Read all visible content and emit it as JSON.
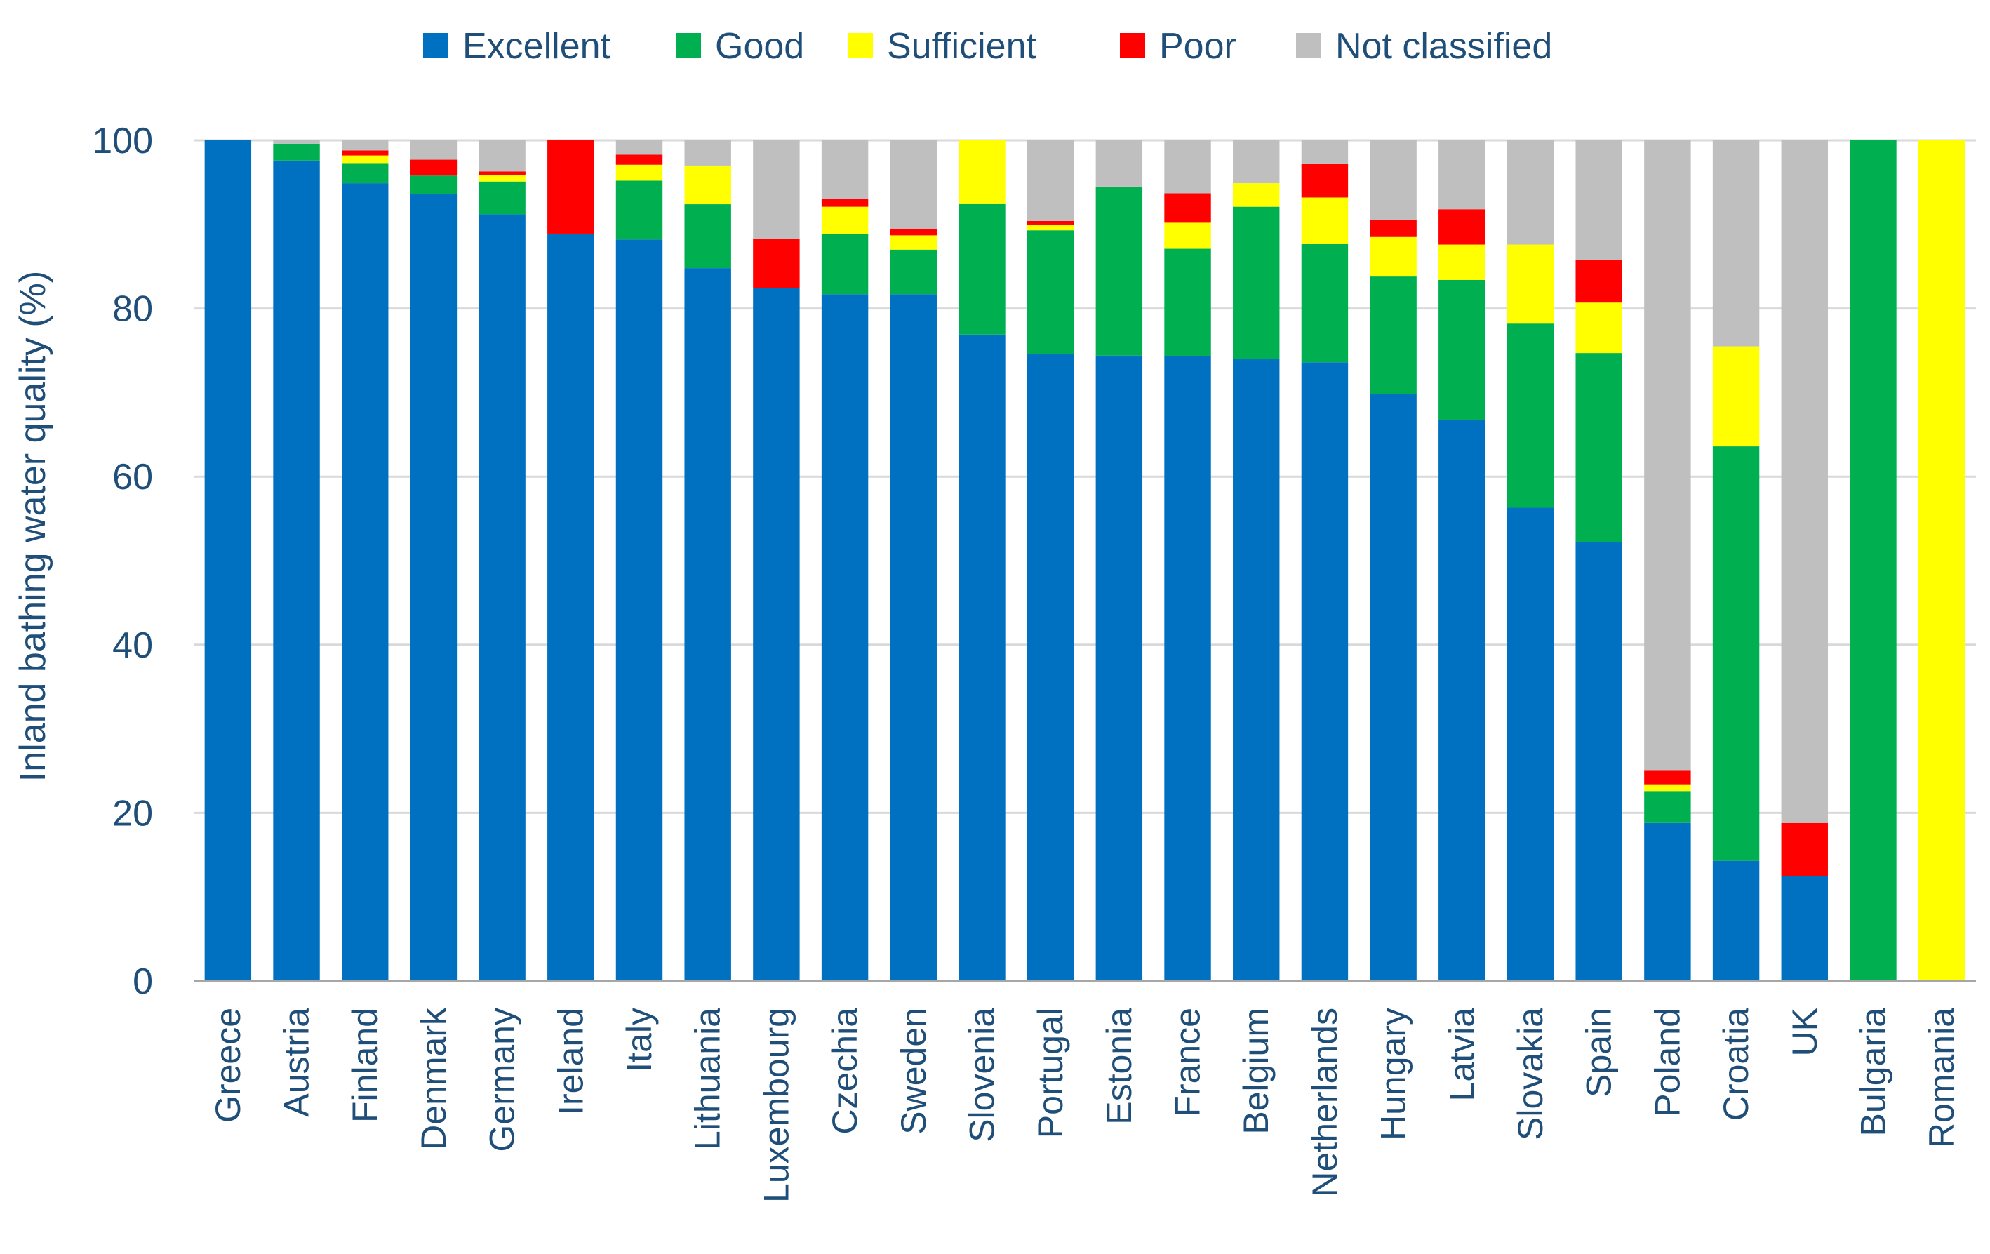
{
  "chart_data": {
    "type": "bar",
    "stacked": true,
    "title": "",
    "xlabel": "",
    "ylabel": "Inland bathing water quality (%)",
    "ylim": [
      0,
      100
    ],
    "yticks": [
      0,
      20,
      40,
      60,
      80,
      100
    ],
    "legend_position": "top",
    "categories": [
      "Greece",
      "Austria",
      "Finland",
      "Denmark",
      "Germany",
      "Ireland",
      "Italy",
      "Lithuania",
      "Luxembourg",
      "Czechia",
      "Sweden",
      "Slovenia",
      "Portugal",
      "Estonia",
      "France",
      "Belgium",
      "Netherlands",
      "Hungary",
      "Latvia",
      "Slovakia",
      "Spain",
      "Poland",
      "Croatia",
      "UK",
      "Bulgaria",
      "Romania"
    ],
    "series": [
      {
        "name": "Excellent",
        "color": "#0070c0",
        "values": [
          100,
          97.6,
          94.9,
          93.6,
          91.2,
          88.9,
          88.2,
          84.8,
          82.4,
          81.7,
          81.7,
          76.9,
          74.6,
          74.4,
          74.3,
          74.0,
          73.6,
          69.8,
          66.7,
          56.3,
          52.2,
          18.8,
          14.3,
          12.5,
          0,
          0
        ]
      },
      {
        "name": "Good",
        "color": "#00b050",
        "values": [
          0,
          2.0,
          2.4,
          2.2,
          3.9,
          0,
          7.0,
          7.6,
          0,
          7.2,
          5.3,
          15.6,
          14.7,
          20.1,
          12.8,
          18.1,
          14.1,
          14.0,
          16.7,
          21.9,
          22.5,
          3.8,
          49.3,
          0,
          100,
          0
        ]
      },
      {
        "name": "Sufficient",
        "color": "#ffff00",
        "values": [
          0,
          0,
          0.9,
          0,
          0.8,
          0,
          1.9,
          4.6,
          0,
          3.2,
          1.7,
          7.5,
          0.6,
          0,
          3.1,
          2.8,
          5.5,
          4.7,
          4.2,
          9.4,
          6.0,
          0.8,
          11.9,
          0,
          0,
          100
        ]
      },
      {
        "name": "Poor",
        "color": "#ff0000",
        "values": [
          0,
          0,
          0.6,
          1.9,
          0.4,
          11.1,
          1.2,
          0,
          5.9,
          0.9,
          0.8,
          0,
          0.5,
          0,
          3.5,
          0,
          4.0,
          2.0,
          4.2,
          0,
          5.1,
          1.7,
          0,
          6.3,
          0,
          0
        ]
      },
      {
        "name": "Not classified",
        "color": "#bfbfbf",
        "values": [
          0,
          0.4,
          1.2,
          2.3,
          3.7,
          0,
          1.7,
          3.0,
          11.7,
          7.0,
          10.5,
          0,
          9.6,
          5.5,
          6.3,
          5.1,
          2.8,
          9.5,
          8.2,
          12.4,
          14.2,
          74.9,
          24.5,
          81.2,
          0,
          0
        ]
      }
    ]
  }
}
